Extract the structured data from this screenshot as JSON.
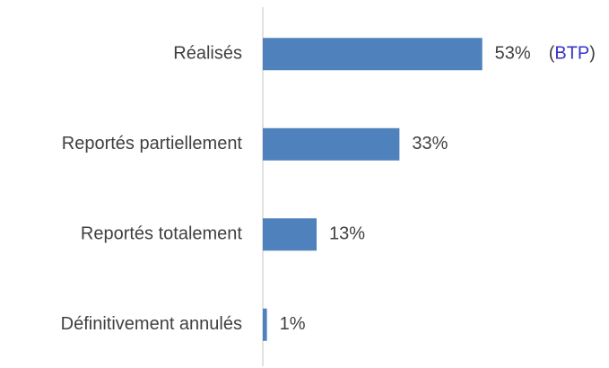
{
  "chart_data": {
    "type": "bar",
    "orientation": "horizontal",
    "categories": [
      "Réalisés",
      "Reportés partiellement",
      "Reportés totalement",
      "Définitivement annulés"
    ],
    "values": [
      53,
      33,
      13,
      1
    ],
    "value_labels": [
      "53%",
      "33%",
      "13%",
      "1%"
    ],
    "color": "#4f81bd",
    "annotation": [
      "(",
      "BTP",
      ")"
    ],
    "annotation_color": "#3333cc",
    "xlim": [
      0,
      60
    ]
  }
}
